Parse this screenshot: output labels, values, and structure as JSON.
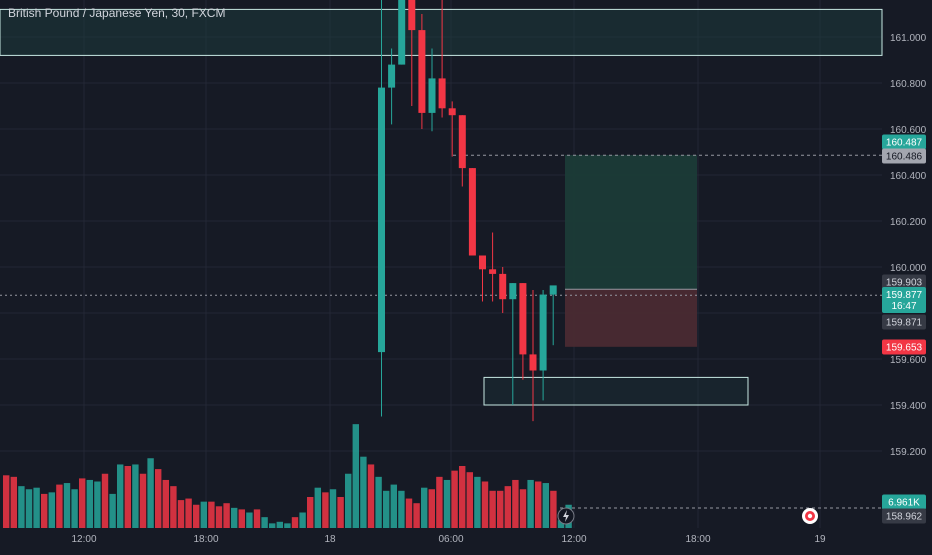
{
  "header": {
    "title": "British Pound / Japanese Yen, 30, FXCM"
  },
  "colors": {
    "background": "#161a25",
    "grid": "#232735",
    "axis_text": "#b2b5be",
    "up": "#26a69a",
    "down": "#f23645",
    "zone_border": "#c7e8e3",
    "zone_fill": "#1e3a3c",
    "profit_fill": "#1b3b37",
    "loss_fill": "#4a2a31",
    "label_dark": "#363a45"
  },
  "chart_data": {
    "type": "candlestick",
    "title": "British Pound / Japanese Yen, 30, FXCM",
    "symbol": "GBPJPY",
    "interval": "30",
    "source": "FXCM",
    "y_range": [
      159.0,
      161.15
    ],
    "y_ticks": [
      "161.000",
      "160.800",
      "160.600",
      "160.400",
      "160.200",
      "160.000",
      "159.600",
      "159.400",
      "159.200"
    ],
    "x_ticks": [
      "12:00",
      "18:00",
      "18",
      "06:00",
      "12:00",
      "18:00",
      "19"
    ],
    "grid": true,
    "candles": [
      {
        "o": 159.63,
        "h": 161.4,
        "l": 159.35,
        "c": 160.78
      },
      {
        "o": 160.78,
        "h": 160.95,
        "l": 160.62,
        "c": 160.88
      },
      {
        "o": 160.88,
        "h": 161.4,
        "l": 160.88,
        "c": 161.4
      },
      {
        "o": 161.4,
        "h": 161.4,
        "l": 160.7,
        "c": 161.03
      },
      {
        "o": 161.03,
        "h": 161.1,
        "l": 160.6,
        "c": 160.67
      },
      {
        "o": 160.67,
        "h": 160.95,
        "l": 160.59,
        "c": 160.82
      },
      {
        "o": 160.82,
        "h": 161.4,
        "l": 160.65,
        "c": 160.69
      },
      {
        "o": 160.69,
        "h": 160.72,
        "l": 160.48,
        "c": 160.66
      },
      {
        "o": 160.66,
        "h": 160.66,
        "l": 160.35,
        "c": 160.43
      },
      {
        "o": 160.43,
        "h": 160.43,
        "l": 160.05,
        "c": 160.05
      },
      {
        "o": 160.05,
        "h": 160.05,
        "l": 159.85,
        "c": 159.99
      },
      {
        "o": 159.99,
        "h": 160.15,
        "l": 159.85,
        "c": 159.97
      },
      {
        "o": 159.97,
        "h": 160.0,
        "l": 159.8,
        "c": 159.86
      },
      {
        "o": 159.86,
        "h": 159.93,
        "l": 159.4,
        "c": 159.93
      },
      {
        "o": 159.93,
        "h": 159.93,
        "l": 159.51,
        "c": 159.62
      },
      {
        "o": 159.62,
        "h": 159.9,
        "l": 159.33,
        "c": 159.55
      },
      {
        "o": 159.55,
        "h": 159.9,
        "l": 159.42,
        "c": 159.88
      },
      {
        "o": 159.88,
        "h": 159.91,
        "l": 159.66,
        "c": 159.92
      }
    ],
    "volume": {
      "count": 75,
      "values": [
        34,
        33,
        27,
        25,
        26,
        22,
        23,
        28,
        29,
        25,
        32,
        31,
        30,
        35,
        22,
        41,
        40,
        41,
        35,
        45,
        38,
        31,
        27,
        18,
        19,
        15,
        17,
        17,
        14,
        16,
        13,
        12,
        10,
        12,
        7,
        3,
        4,
        3,
        7,
        10,
        20,
        26,
        23,
        25,
        20,
        35,
        67,
        46,
        41,
        33,
        24,
        28,
        24,
        19,
        16,
        26,
        25,
        33,
        31,
        37,
        40,
        36,
        33,
        30,
        24,
        24,
        27,
        31,
        25,
        31,
        30,
        29,
        24,
        5,
        15
      ],
      "colors": [
        "dn",
        "dn",
        "up",
        "up",
        "up",
        "dn",
        "up",
        "dn",
        "up",
        "up",
        "dn",
        "up",
        "up",
        "dn",
        "up",
        "up",
        "dn",
        "up",
        "dn",
        "up",
        "dn",
        "dn",
        "dn",
        "dn",
        "dn",
        "dn",
        "up",
        "dn",
        "dn",
        "dn",
        "up",
        "dn",
        "up",
        "dn",
        "up",
        "up",
        "up",
        "up",
        "dn",
        "up",
        "dn",
        "up",
        "dn",
        "up",
        "dn",
        "up",
        "up",
        "up",
        "dn",
        "up",
        "up",
        "up",
        "up",
        "dn",
        "dn",
        "up",
        "dn",
        "dn",
        "up",
        "dn",
        "dn",
        "dn",
        "up",
        "dn",
        "dn",
        "dn",
        "dn",
        "dn",
        "dn",
        "up",
        "dn",
        "up",
        "dn",
        "up",
        "up"
      ],
      "last_label": "6.961K"
    },
    "levels": {
      "target_price": "160.487",
      "target_ref": "160.486",
      "stop_price": "159.653",
      "entry_price": "159.903",
      "current_price": "159.877",
      "countdown": "16:47",
      "bid_price": "159.871",
      "low_ref": "158.962"
    },
    "zones": [
      {
        "name": "supply-zone",
        "y_top": 161.12,
        "y_bottom": 160.92
      },
      {
        "name": "demand-zone",
        "y_top": 159.52,
        "y_bottom": 159.4
      }
    ]
  }
}
